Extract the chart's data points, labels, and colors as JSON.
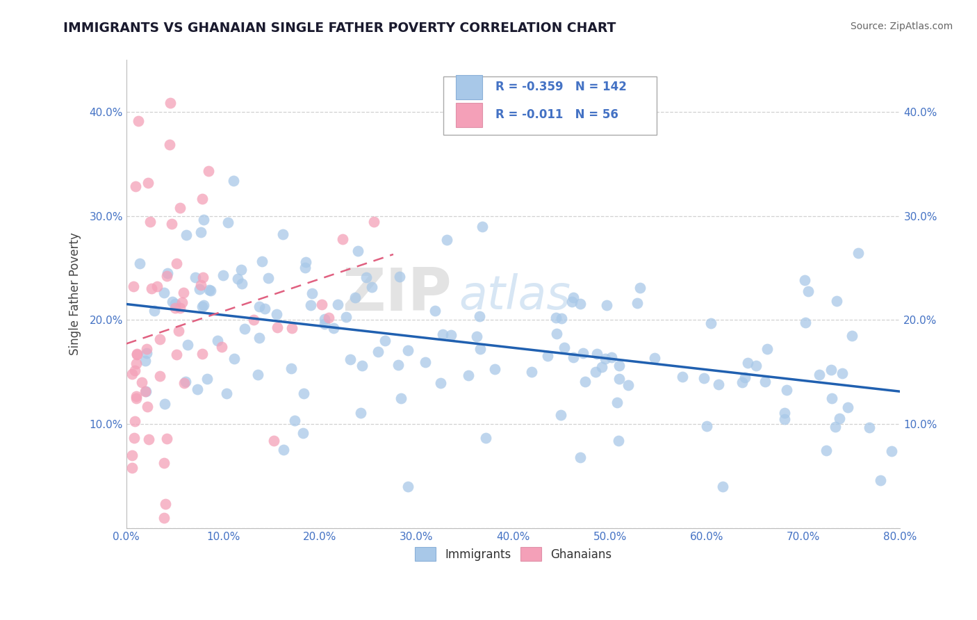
{
  "title": "IMMIGRANTS VS GHANAIAN SINGLE FATHER POVERTY CORRELATION CHART",
  "source_text": "Source: ZipAtlas.com",
  "ylabel": "Single Father Poverty",
  "x_min": 0.0,
  "x_max": 0.8,
  "y_min": 0.0,
  "y_max": 0.45,
  "x_ticks": [
    0.0,
    0.1,
    0.2,
    0.3,
    0.4,
    0.5,
    0.6,
    0.7,
    0.8
  ],
  "x_tick_labels": [
    "0.0%",
    "10.0%",
    "20.0%",
    "30.0%",
    "40.0%",
    "50.0%",
    "60.0%",
    "70.0%",
    "80.0%"
  ],
  "y_ticks": [
    0.0,
    0.1,
    0.2,
    0.3,
    0.4
  ],
  "y_tick_labels_left": [
    "",
    "10.0%",
    "20.0%",
    "30.0%",
    "40.0%"
  ],
  "y_tick_labels_right": [
    "",
    "10.0%",
    "20.0%",
    "30.0%",
    "40.0%"
  ],
  "immigrants_R": -0.359,
  "immigrants_N": 142,
  "ghanaians_R": -0.011,
  "ghanaians_N": 56,
  "immigrants_color": "#a8c8e8",
  "ghanaians_color": "#f4a0b8",
  "immigrants_line_color": "#2060b0",
  "ghanaians_line_color": "#e06080",
  "legend_immigrants_label": "Immigrants",
  "legend_ghanaians_label": "Ghanaians",
  "watermark_zip": "ZIP",
  "watermark_atlas": "atlas",
  "background_color": "#ffffff",
  "grid_color": "#cccccc",
  "title_color": "#1a1a2e",
  "axis_label_color": "#444444",
  "tick_label_color": "#4472c4",
  "legend_text_color": "#4472c4",
  "source_color": "#666666"
}
